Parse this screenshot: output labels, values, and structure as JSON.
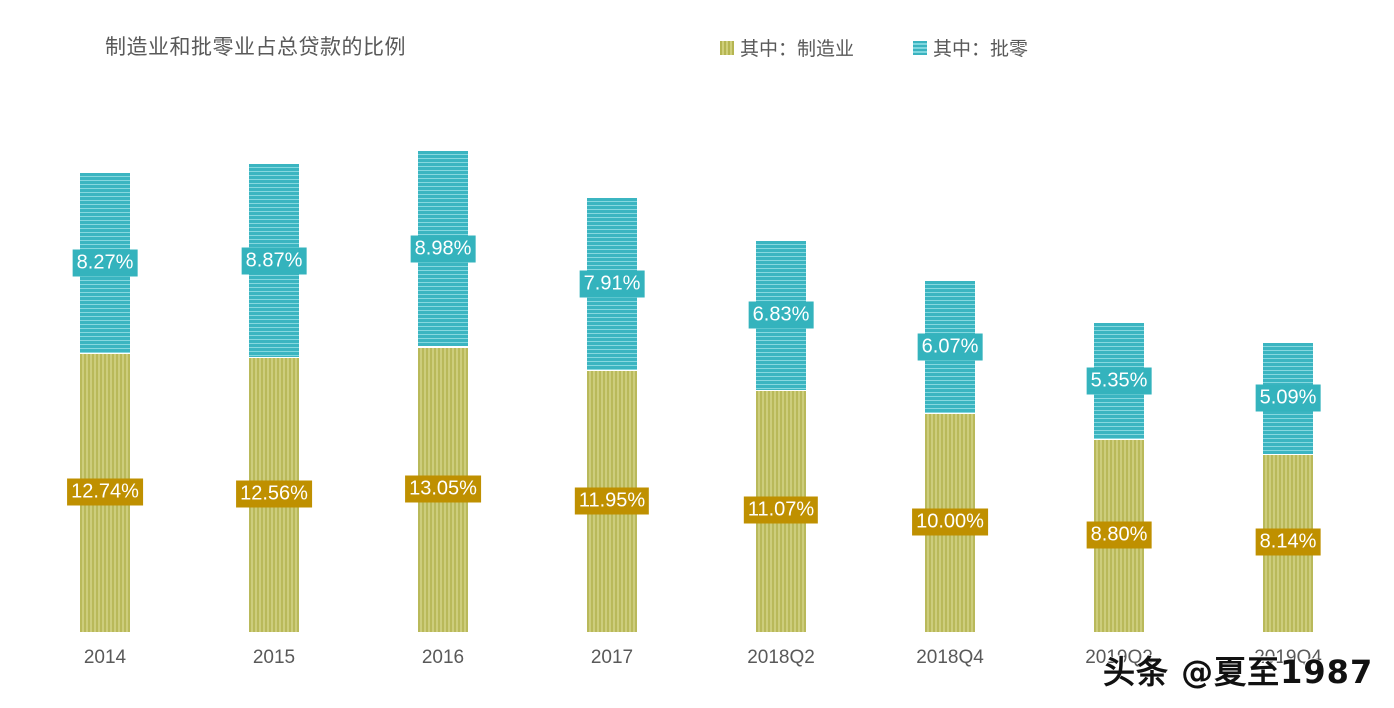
{
  "chart_data": {
    "type": "bar",
    "stacked": true,
    "title": "制造业和批零业占总贷款的比例",
    "categories": [
      "2014",
      "2015",
      "2016",
      "2017",
      "2018Q2",
      "2018Q4",
      "2019Q2",
      "2019Q4"
    ],
    "series": [
      {
        "name": "其中：制造业",
        "color": "#bcbc5e",
        "label_bg": "#bf9000",
        "values": [
          12.74,
          12.56,
          13.05,
          11.95,
          11.07,
          10.0,
          8.8,
          8.14
        ],
        "labels": [
          "12.74%",
          "12.56%",
          "13.05%",
          "11.95%",
          "11.07%",
          "10.00%",
          "8.80%",
          "8.14%"
        ]
      },
      {
        "name": "其中：批零",
        "color": "#3bb5c1",
        "label_bg": "#34b3bd",
        "values": [
          8.27,
          8.87,
          8.98,
          7.91,
          6.83,
          6.07,
          5.35,
          5.09
        ],
        "labels": [
          "8.27%",
          "8.87%",
          "8.98%",
          "7.91%",
          "6.83%",
          "6.07%",
          "5.35%",
          "5.09%"
        ]
      }
    ],
    "xlabel": "",
    "ylabel": "",
    "grid": false,
    "legend_position": "top-right"
  },
  "legend": {
    "mfg": "其中：制造业",
    "ret": "其中：批零"
  },
  "watermark": "头条 @夏至1987"
}
